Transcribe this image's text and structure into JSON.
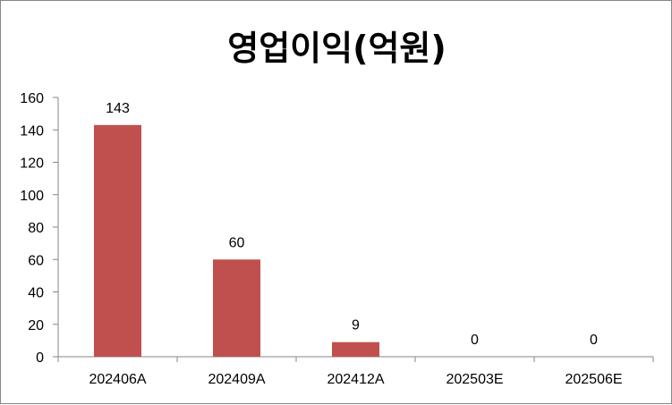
{
  "chart_data": {
    "type": "bar",
    "title": "영업이익(억원)",
    "categories": [
      "202406A",
      "202409A",
      "202412A",
      "202503E",
      "202506E"
    ],
    "values": [
      143,
      60,
      9,
      0,
      0
    ],
    "data_labels": [
      "143",
      "60",
      "9",
      "0",
      "0"
    ],
    "yticks": [
      "0",
      "20",
      "40",
      "60",
      "80",
      "100",
      "120",
      "140",
      "160"
    ],
    "ylim": [
      0,
      160
    ],
    "xlabel": "",
    "ylabel": "",
    "grid": false,
    "legend": "none",
    "bar_color": "#C0504D"
  }
}
